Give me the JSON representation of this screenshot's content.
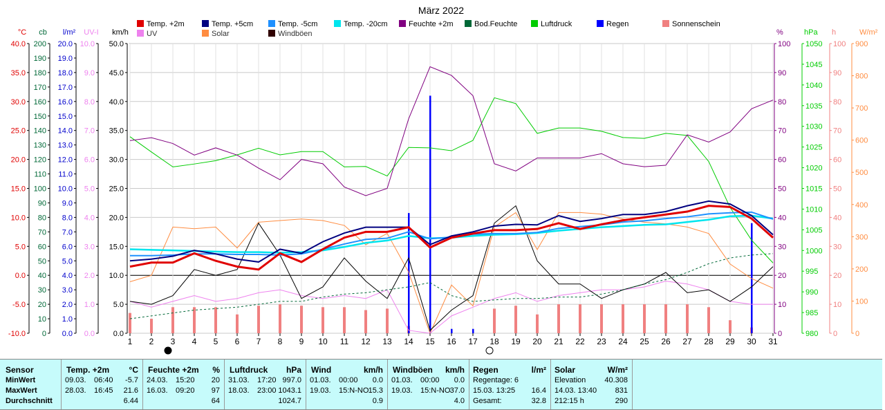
{
  "chart_data": {
    "type": "line",
    "title": "März 2022",
    "days": [
      1,
      2,
      3,
      4,
      5,
      6,
      7,
      8,
      9,
      10,
      11,
      12,
      13,
      14,
      15,
      16,
      17,
      18,
      19,
      20,
      21,
      22,
      23,
      24,
      25,
      26,
      27,
      28,
      29,
      30,
      31
    ],
    "moon_phases": [
      {
        "day": 3,
        "phase": "new"
      },
      {
        "day": 18,
        "phase": "full"
      }
    ],
    "legend": [
      {
        "label": "Temp. +2m",
        "color": "#e00000"
      },
      {
        "label": "Temp. +5cm",
        "color": "#000080"
      },
      {
        "label": "Temp. -5cm",
        "color": "#1e90ff"
      },
      {
        "label": "Temp. -20cm",
        "color": "#00e5ee"
      },
      {
        "label": "Feuchte +2m",
        "color": "#800080"
      },
      {
        "label": "Bod.Feuchte",
        "color": "#006837"
      },
      {
        "label": "Luftdruck",
        "color": "#00cc00"
      },
      {
        "label": "Regen",
        "color": "#0000ff"
      },
      {
        "label": "Sonnenschein",
        "color": "#f08080"
      },
      {
        "label": "UV",
        "color": "#ee82ee"
      },
      {
        "label": "Solar",
        "color": "#ff8c40"
      },
      {
        "label": "Windböen",
        "color": "#300000"
      }
    ],
    "axes_left": [
      {
        "unit": "°C",
        "color": "#e00000",
        "ticks": [
          "40.0",
          "35.0",
          "30.0",
          "25.0",
          "20.0",
          "15.0",
          "10.0",
          "5.0",
          "0.0",
          "-5.0",
          "-10.0"
        ]
      },
      {
        "unit": "cb",
        "color": "#006837",
        "ticks": [
          "200",
          "190",
          "180",
          "170",
          "160",
          "150",
          "140",
          "130",
          "120",
          "110",
          "100",
          "90",
          "80",
          "70",
          "60",
          "50",
          "40",
          "30",
          "20",
          "10",
          "0"
        ]
      },
      {
        "unit": "l/m²",
        "color": "#0000cc",
        "ticks": [
          "20.0",
          "19.0",
          "18.0",
          "17.0",
          "16.0",
          "15.0",
          "14.0",
          "13.0",
          "12.0",
          "11.0",
          "10.0",
          "9.0",
          "8.0",
          "7.0",
          "6.0",
          "5.0",
          "4.0",
          "3.0",
          "2.0",
          "1.0",
          "0.0"
        ]
      },
      {
        "unit": "UV-I",
        "color": "#ee82ee",
        "ticks": [
          "10.0",
          "9.0",
          "8.0",
          "7.0",
          "6.0",
          "5.0",
          "4.0",
          "3.0",
          "2.0",
          "1.0",
          "0.0"
        ]
      },
      {
        "unit": "km/h",
        "color": "#000000",
        "ticks": [
          "50.0",
          "45.0",
          "40.0",
          "35.0",
          "30.0",
          "25.0",
          "20.0",
          "15.0",
          "10.0",
          "5.0",
          "0.0"
        ]
      }
    ],
    "axes_right": [
      {
        "unit": "%",
        "color": "#800080",
        "ticks": [
          "100",
          "90",
          "80",
          "70",
          "60",
          "50",
          "40",
          "30",
          "20",
          "10",
          "0"
        ]
      },
      {
        "unit": "hPa",
        "color": "#00cc00",
        "ticks": [
          "1050",
          "1045",
          "1040",
          "1035",
          "1030",
          "1025",
          "1020",
          "1015",
          "1010",
          "1005",
          "1000",
          "995",
          "990",
          "985",
          "980"
        ]
      },
      {
        "unit": "h",
        "color": "#f08080",
        "ticks": [
          "100",
          "90",
          "80",
          "70",
          "60",
          "50",
          "40",
          "30",
          "20",
          "10",
          "0"
        ]
      },
      {
        "unit": "W/m²",
        "color": "#ff8c40",
        "ticks": [
          "900",
          "800",
          "700",
          "600",
          "500",
          "400",
          "300",
          "200",
          "100",
          "0"
        ]
      }
    ],
    "temp_unit_range": [
      -10,
      40
    ],
    "wind_range": [
      0,
      50
    ],
    "humidity_range": [
      0,
      100
    ],
    "pressure_range": [
      980,
      1050
    ],
    "solar_range": [
      0,
      900
    ],
    "rain_range": [
      0,
      20
    ],
    "temp_2m": [
      1.5,
      2.2,
      2.2,
      3.8,
      2.5,
      1.5,
      1.0,
      3.8,
      2.3,
      4.5,
      6.5,
      7.5,
      7.5,
      8.3,
      4.8,
      6.5,
      7.2,
      7.8,
      7.8,
      8.0,
      9.0,
      8.0,
      8.8,
      9.5,
      10.0,
      10.5,
      11.0,
      12.0,
      11.8,
      9.8,
      6.5
    ],
    "temp_5cm": [
      2.5,
      2.8,
      3.3,
      4.3,
      3.7,
      2.8,
      2.3,
      4.5,
      3.8,
      5.8,
      7.3,
      8.3,
      8.3,
      8.3,
      5.3,
      6.8,
      7.5,
      8.5,
      8.8,
      8.7,
      10.3,
      9.3,
      9.8,
      10.5,
      10.5,
      11.0,
      12.0,
      12.8,
      12.3,
      10.3,
      7.0
    ],
    "temp_minus5cm": [
      3.4,
      3.4,
      3.5,
      3.7,
      3.7,
      3.6,
      3.6,
      3.5,
      3.7,
      4.5,
      5.4,
      6.2,
      6.4,
      7.5,
      6.3,
      6.6,
      7.1,
      7.2,
      7.2,
      7.4,
      8.1,
      8.4,
      8.7,
      9.2,
      9.4,
      9.8,
      10.1,
      10.6,
      10.8,
      10.9,
      9.7
    ],
    "temp_minus20cm": [
      4.5,
      4.4,
      4.3,
      4.2,
      4.1,
      4.0,
      4.0,
      3.9,
      4.0,
      4.3,
      4.9,
      5.6,
      6.0,
      6.8,
      6.4,
      6.5,
      6.8,
      7.0,
      7.1,
      7.3,
      7.7,
      8.0,
      8.3,
      8.5,
      8.7,
      8.8,
      9.2,
      9.6,
      10.2,
      10.3,
      9.8
    ],
    "humidity_2m": [
      66.5,
      67.5,
      65.5,
      61.5,
      64,
      61.5,
      57,
      53,
      60,
      58.5,
      50.5,
      47.5,
      50,
      74,
      92,
      89,
      82,
      58.5,
      56,
      60.5,
      60.5,
      60.5,
      62,
      58.5,
      57.5,
      58,
      68.5,
      66,
      69.5,
      77.5,
      80.5
    ],
    "soil_moisture_cb": [
      10,
      12,
      14,
      16,
      17,
      18,
      20,
      22,
      22,
      25,
      27,
      28,
      30,
      32,
      35,
      26,
      22,
      23,
      24,
      24,
      25,
      25,
      27,
      30,
      34,
      37,
      42,
      48,
      52,
      54,
      55
    ],
    "pressure_hpa": [
      1027.5,
      1023.8,
      1020.2,
      1020.9,
      1021.7,
      1023.1,
      1024.7,
      1023.1,
      1023.9,
      1023.9,
      1020.2,
      1020.3,
      1018.0,
      1024.9,
      1024.8,
      1024.1,
      1026.6,
      1036.9,
      1035.5,
      1028.3,
      1029.6,
      1029.6,
      1028.8,
      1027.3,
      1027.1,
      1028.3,
      1027.8,
      1021.5,
      1010.4,
      1002.5,
      997.0
    ],
    "wind_gusts_kmh": [
      5.5,
      5.0,
      6.5,
      11.0,
      10.0,
      11.0,
      19.0,
      13.5,
      6.0,
      8.0,
      13.0,
      9.0,
      6.0,
      13.0,
      0.5,
      4.0,
      6.5,
      19.0,
      22.0,
      12.5,
      8.5,
      8.5,
      6.0,
      7.5,
      8.5,
      10.5,
      7.0,
      7.5,
      5.5,
      8.0,
      11.5
    ],
    "uv_index": [
      1.1,
      0.9,
      1.1,
      1.3,
      1.1,
      1.2,
      1.4,
      1.5,
      1.3,
      1.2,
      1.3,
      1.2,
      1.5,
      0.1,
      0.0,
      0.6,
      0.9,
      1.2,
      1.4,
      1.1,
      1.3,
      1.4,
      1.5,
      1.5,
      1.6,
      1.8,
      1.7,
      1.5,
      1.1,
      1.0,
      1.0
    ],
    "solar_wm2": [
      160,
      180,
      330,
      325,
      330,
      265,
      345,
      350,
      355,
      350,
      335,
      275,
      310,
      190,
      0,
      150,
      85,
      330,
      375,
      260,
      375,
      375,
      370,
      355,
      345,
      340,
      330,
      310,
      215,
      170,
      140
    ],
    "sunshine_h": [
      7,
      5,
      9,
      9,
      9,
      6.5,
      9.5,
      10,
      9.5,
      9,
      9,
      8,
      8.5,
      2.5,
      0,
      0,
      0,
      8.5,
      9.5,
      6.5,
      10,
      10,
      10,
      10,
      10,
      10,
      10,
      9,
      4.5,
      2,
      0
    ],
    "rain_lm2": [
      0,
      0,
      0,
      0,
      0,
      0,
      0,
      0,
      0,
      0,
      0,
      0,
      0,
      8.3,
      16.4,
      0.3,
      0.3,
      0,
      0,
      0,
      0,
      0,
      0,
      0,
      0,
      0,
      0,
      0,
      0,
      7.6,
      0
    ]
  },
  "stats": {
    "sensor": {
      "title": "Sensor",
      "rows": [
        "MinWert",
        "MaxWert",
        "Durchschnitt"
      ]
    },
    "temp": {
      "title": "Temp. +2m",
      "unit": "°C",
      "min_date": "09.03.",
      "min_time": "06:40",
      "min_val": "-5.7",
      "max_date": "28.03.",
      "max_time": "16:45",
      "max_val": "21.6",
      "avg": "6.44"
    },
    "humidity": {
      "title": "Feuchte +2m",
      "unit": "%",
      "min_date": "24.03.",
      "min_time": "15:20",
      "min_val": "20",
      "max_date": "16.03.",
      "max_time": "09:20",
      "max_val": "97",
      "avg": "64"
    },
    "pressure": {
      "title": "Luftdruck",
      "unit": "hPa",
      "min_date": "31.03.",
      "min_time": "17:20",
      "min_val": "997.0",
      "max_date": "18.03.",
      "max_time": "23:00",
      "max_val": "1043.1",
      "avg": "1024.7"
    },
    "wind": {
      "title": "Wind",
      "unit": "km/h",
      "min_date": "01.03.",
      "min_time": "00:00",
      "min_val": "0.0",
      "max_date": "19.03.",
      "max_time": "15:N-NO",
      "max_val": "15.3",
      "avg": "0.9"
    },
    "gusts": {
      "title": "Windböen",
      "unit": "km/h",
      "min_date": "01.03.",
      "min_time": "00:00",
      "min_val": "0.0",
      "max_date": "19.03.",
      "max_time": "15:N-NO",
      "max_val": "37.0",
      "avg": "4.0"
    },
    "rain": {
      "title": "Regen",
      "unit": "l/m²",
      "l1": "Regentage: 6",
      "v1": "",
      "l2": "15.03.   13:25",
      "v2": "16.4",
      "l3": "Gesamt:",
      "v3": "32.8"
    },
    "solar": {
      "title": "Solar",
      "unit": "W/m²",
      "l1": "Elevation",
      "v1": "40.308",
      "l2": "14.03.   13:40",
      "v2": "831",
      "l3": "212:15 h",
      "v3": "290"
    }
  }
}
